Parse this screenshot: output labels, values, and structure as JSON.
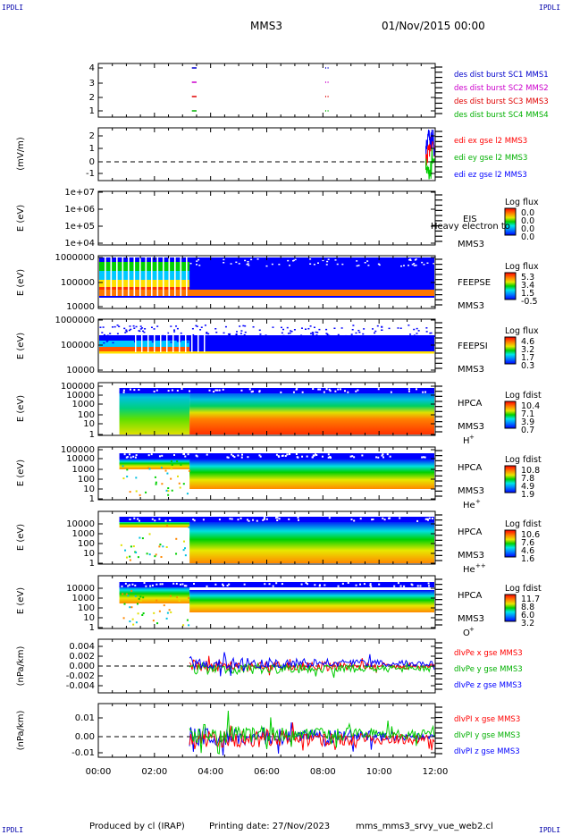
{
  "header": {
    "mission": "MMS3",
    "date": "01/Nov/2015 00:00",
    "corner_marks": [
      "IPDLI",
      "IPDLI",
      "IPDLI",
      "IPDLI"
    ]
  },
  "footer": {
    "credit": "Produced by cl (IRAP)",
    "printing_date": "Printing date: 27/Nov/2023",
    "filename": "mms_mms3_srvy_vue_web2.cl"
  },
  "colors": {
    "frame": "#000000",
    "text_blue": "#0000cc",
    "mms1": "#00a000",
    "mms2": "#e00000",
    "mms3": "#cc00cc",
    "mms4": "#0000ff",
    "ex": "#ff0000",
    "ey": "#00cc00",
    "ez": "#0000ff"
  },
  "chart_data": [
    {
      "type": "line",
      "panel": "burst_intervals",
      "ylabel": "",
      "ylim": [
        0.5,
        4.5
      ],
      "yticks": [
        "1",
        "2",
        "3",
        "4"
      ],
      "x_range": [
        "00:00",
        "12:00"
      ],
      "series": [
        {
          "name": "des dist burst SC1 MMS1",
          "color": "#0000cc",
          "level": 4,
          "segments": [
            [
              "03:20",
              "03:30"
            ],
            [
              "08:05",
              "08:07"
            ],
            [
              "08:10",
              "08:12"
            ]
          ]
        },
        {
          "name": "des dist burst SC2 MMS2",
          "color": "#cc00cc",
          "level": 3,
          "segments": [
            [
              "03:20",
              "03:30"
            ],
            [
              "08:05",
              "08:07"
            ],
            [
              "08:10",
              "08:12"
            ]
          ]
        },
        {
          "name": "des dist burst SC3 MMS3",
          "color": "#e00000",
          "level": 2,
          "segments": [
            [
              "03:20",
              "03:30"
            ],
            [
              "08:05",
              "08:07"
            ],
            [
              "08:10",
              "08:12"
            ]
          ]
        },
        {
          "name": "des dist burst SC4 MMS4",
          "color": "#00b000",
          "level": 1,
          "segments": [
            [
              "03:20",
              "03:30"
            ],
            [
              "08:05",
              "08:07"
            ],
            [
              "08:10",
              "08:12"
            ]
          ]
        }
      ]
    },
    {
      "type": "line",
      "panel": "edi_efield",
      "ylabel": "(mV/m)",
      "ylim": [
        -1.5,
        2.5
      ],
      "yticks": [
        "-1",
        "0",
        "1",
        "2"
      ],
      "series": [
        {
          "name": "edi ex gse l2 MMS3",
          "color": "#ff0000",
          "x": [
            "11:40",
            "11:45",
            "11:50",
            "11:55",
            "12:00"
          ],
          "values": [
            0.2,
            0.8,
            1.5,
            1.2,
            0.6
          ]
        },
        {
          "name": "edi ey gse l2 MMS3",
          "color": "#00cc00",
          "x": [
            "11:40",
            "11:45",
            "11:50",
            "11:55",
            "12:00"
          ],
          "values": [
            -0.3,
            -1.0,
            -0.6,
            0.4,
            0.2
          ]
        },
        {
          "name": "edi ez gse l2 MMS3",
          "color": "#0000ff",
          "x": [
            "11:40",
            "11:45",
            "11:50",
            "11:55",
            "12:00"
          ],
          "values": [
            1.0,
            2.0,
            1.6,
            2.2,
            1.0
          ]
        }
      ]
    },
    {
      "type": "heatmap",
      "panel": "eis",
      "ylabel": "E (eV)",
      "yticks": [
        "1e+04",
        "1e+05",
        "1e+06",
        "1e+07"
      ],
      "instrument": "EIS",
      "instrument_sub": "Heavy electron to",
      "spacecraft": "MMS3",
      "colorbar_title": "Log flux",
      "colorbar_ticks": [
        "0.0",
        "0.0",
        "0.0",
        "0.0"
      ]
    },
    {
      "type": "heatmap",
      "panel": "feeps_electron",
      "ylabel": "E (eV)",
      "yticks": [
        "10000",
        "100000",
        "1000000"
      ],
      "instrument": "FEEPSE",
      "spacecraft": "MMS3",
      "colorbar_title": "Log flux",
      "colorbar_ticks": [
        "5.3",
        "3.4",
        "1.5",
        "-0.5"
      ]
    },
    {
      "type": "heatmap",
      "panel": "feeps_ion",
      "ylabel": "E (eV)",
      "yticks": [
        "10000",
        "100000",
        "1000000"
      ],
      "instrument": "FEEPSI",
      "spacecraft": "MMS3",
      "colorbar_title": "Log flux",
      "colorbar_ticks": [
        "4.6",
        "3.2",
        "1.7",
        "0.3"
      ]
    },
    {
      "type": "heatmap",
      "panel": "hpca_h",
      "ylabel": "E (eV)",
      "yticks": [
        "1",
        "10",
        "100",
        "1000",
        "10000",
        "100000"
      ],
      "instrument": "HPCA",
      "spacecraft": "MMS3",
      "species": "H",
      "charge": "+",
      "colorbar_title": "Log fdist",
      "colorbar_ticks": [
        "10.4",
        "7.1",
        "3.9",
        "0.7"
      ]
    },
    {
      "type": "heatmap",
      "panel": "hpca_he1",
      "ylabel": "E (eV)",
      "yticks": [
        "1",
        "10",
        "100",
        "1000",
        "10000",
        "100000"
      ],
      "instrument": "HPCA",
      "spacecraft": "MMS3",
      "species": "He",
      "charge": "+",
      "colorbar_title": "Log fdist",
      "colorbar_ticks": [
        "10.8",
        "7.8",
        "4.9",
        "1.9"
      ]
    },
    {
      "type": "heatmap",
      "panel": "hpca_he2",
      "ylabel": "E (eV)",
      "yticks": [
        "1",
        "10",
        "100",
        "1000",
        "10000"
      ],
      "instrument": "HPCA",
      "spacecraft": "MMS3",
      "species": "He",
      "charge": "++",
      "colorbar_title": "Log fdist",
      "colorbar_ticks": [
        "10.6",
        "7.6",
        "4.6",
        "1.6"
      ]
    },
    {
      "type": "heatmap",
      "panel": "hpca_o",
      "ylabel": "E (eV)",
      "yticks": [
        "1",
        "10",
        "100",
        "1000",
        "10000"
      ],
      "instrument": "HPCA",
      "spacecraft": "MMS3",
      "species": "O",
      "charge": "+",
      "colorbar_title": "Log fdist",
      "colorbar_ticks": [
        "11.7",
        "8.8",
        "6.0",
        "3.2"
      ]
    },
    {
      "type": "line",
      "panel": "div_pe",
      "ylabel": "(nPa/km)",
      "ylim": [
        -0.005,
        0.005
      ],
      "yticks": [
        "-0.004",
        "-0.002",
        "0.000",
        "0.002",
        "0.004"
      ],
      "series": [
        {
          "name": "dIvPe x gse MMS3",
          "color": "#ff0000",
          "amplitude": 0.0015
        },
        {
          "name": "dIvPe y gse MMS3",
          "color": "#00cc00",
          "amplitude": 0.0015
        },
        {
          "name": "dIvPe z gse MMS3",
          "color": "#0000ff",
          "amplitude": 0.0012
        }
      ],
      "active_from": "03:15"
    },
    {
      "type": "line",
      "panel": "div_pi",
      "ylabel": "(nPa/km)",
      "ylim": [
        -0.013,
        0.018
      ],
      "yticks": [
        "-0.01",
        "0.00",
        "0.01"
      ],
      "series": [
        {
          "name": "dIvPI x gse MMS3",
          "color": "#ff0000",
          "amplitude": 0.006
        },
        {
          "name": "dIvPI y gse MMS3",
          "color": "#00cc00",
          "amplitude": 0.004
        },
        {
          "name": "dIvPI z gse MMS3",
          "color": "#0000ff",
          "amplitude": 0.003
        }
      ],
      "active_from": "03:15"
    }
  ],
  "x_axis": {
    "ticks": [
      "00:00",
      "02:00",
      "04:00",
      "06:00",
      "08:00",
      "10:00",
      "12:00"
    ]
  }
}
